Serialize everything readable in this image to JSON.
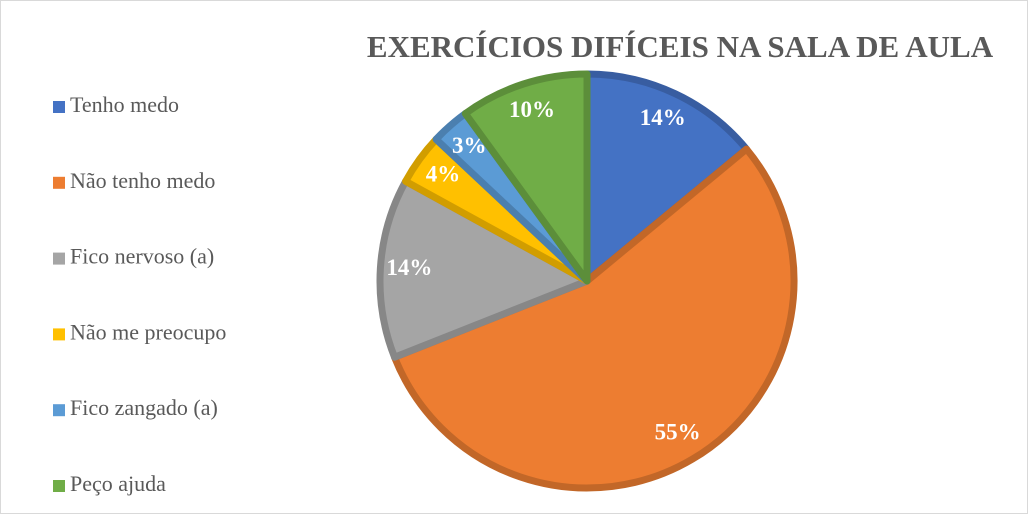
{
  "chart_data": {
    "type": "pie",
    "title": "EXERCÍCIOS DIFÍCEIS NA SALA DE AULA",
    "categories": [
      "Tenho medo",
      "Não tenho medo",
      "Fico nervoso (a)",
      "Não me preocupo",
      "Fico zangado (a)",
      "Peço ajuda"
    ],
    "values": [
      14,
      55,
      14,
      4,
      3,
      10
    ],
    "value_labels": [
      "14%",
      "55%",
      "14%",
      "4%",
      "3%",
      "10%"
    ],
    "colors": [
      "#4472c4",
      "#ed7d31",
      "#a5a5a5",
      "#ffc000",
      "#5b9bd5",
      "#70ad47"
    ],
    "legend": "left"
  }
}
